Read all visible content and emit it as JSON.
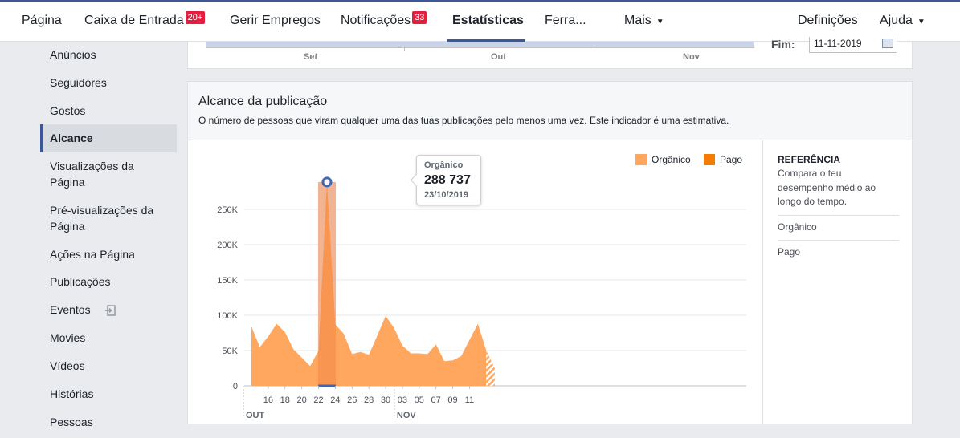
{
  "nav": {
    "pagina": "Página",
    "inbox": "Caixa de Entrada",
    "inbox_badge": "20+",
    "jobs": "Gerir Empregos",
    "notifications": "Notificações",
    "notifications_badge": "33",
    "stats": "Estatísticas",
    "tools": "Ferra...",
    "more": "Mais",
    "settings": "Definições",
    "help": "Ajuda"
  },
  "sidebar": {
    "items": [
      {
        "label": "Anúncios"
      },
      {
        "label": "Seguidores"
      },
      {
        "label": "Gostos"
      },
      {
        "label": "Alcance"
      },
      {
        "label": "Visualizações da Página"
      },
      {
        "label": "Pré-visualizações da Página"
      },
      {
        "label": "Ações na Página"
      },
      {
        "label": "Publicações"
      },
      {
        "label": "Eventos"
      },
      {
        "label": "Movies"
      },
      {
        "label": "Vídeos"
      },
      {
        "label": "Histórias"
      },
      {
        "label": "Pessoas"
      }
    ]
  },
  "range_card": {
    "months": [
      "Set",
      "Out",
      "Nov"
    ],
    "end_label": "Fim:",
    "end_date": "11-11-2019"
  },
  "reach_card": {
    "title": "Alcance da publicação",
    "description": "O número de pessoas que viram qualquer uma das tuas publicações pelo menos uma vez. Este indicador é uma estimativa.",
    "legend": [
      {
        "label": "Orgânico",
        "color": "#ffa65f"
      },
      {
        "label": "Pago",
        "color": "#f57c00"
      }
    ],
    "tooltip": {
      "series": "Orgânico",
      "value": "288 737",
      "date": "23/10/2019"
    },
    "reference": {
      "title": "REFERÊNCIA",
      "text": "Compara o teu desempenho médio ao longo do tempo.",
      "options": [
        "Orgânico",
        "Pago"
      ]
    }
  },
  "chart_data": {
    "type": "area",
    "title": "Alcance da publicação",
    "series": [
      {
        "name": "Orgânico",
        "color": "#ffa65f",
        "values": [
          84000,
          55000,
          70000,
          88000,
          76000,
          52000,
          40000,
          28000,
          50000,
          288737,
          87000,
          74000,
          45000,
          48000,
          44000,
          71000,
          99000,
          82000,
          57000,
          46000,
          46000,
          45000,
          59000,
          35000,
          36000,
          42000,
          65000,
          88000,
          50000,
          25000
        ]
      },
      {
        "name": "Pago",
        "color": "#f57c00",
        "values": [
          0,
          0,
          0,
          0,
          0,
          0,
          0,
          0,
          0,
          0,
          0,
          0,
          0,
          0,
          0,
          0,
          0,
          0,
          0,
          0,
          0,
          0,
          0,
          0,
          0,
          0,
          0,
          0,
          0,
          0
        ]
      }
    ],
    "x": [
      "2019-10-14",
      "2019-10-15",
      "2019-10-16",
      "2019-10-17",
      "2019-10-18",
      "2019-10-19",
      "2019-10-20",
      "2019-10-21",
      "2019-10-22",
      "2019-10-23",
      "2019-10-24",
      "2019-10-25",
      "2019-10-26",
      "2019-10-27",
      "2019-10-28",
      "2019-10-29",
      "2019-10-30",
      "2019-10-31",
      "2019-11-01",
      "2019-11-02",
      "2019-11-03",
      "2019-11-04",
      "2019-11-05",
      "2019-11-06",
      "2019-11-07",
      "2019-11-08",
      "2019-11-09",
      "2019-11-10",
      "2019-11-11",
      "2019-11-12"
    ],
    "x_tick_labels": [
      "16",
      "18",
      "20",
      "22",
      "24",
      "26",
      "28",
      "30",
      "03",
      "05",
      "07",
      "09",
      "11"
    ],
    "month_labels": [
      "OUT",
      "NOV"
    ],
    "y_ticks": [
      0,
      50000,
      100000,
      150000,
      200000,
      250000
    ],
    "y_tick_labels": [
      "0",
      "50K",
      "100K",
      "150K",
      "200K",
      "250K"
    ],
    "ylim": [
      0,
      300000
    ],
    "highlighted": {
      "x": "2019-10-23",
      "value": 288737
    },
    "legend_position": "top-right",
    "grid": true
  }
}
